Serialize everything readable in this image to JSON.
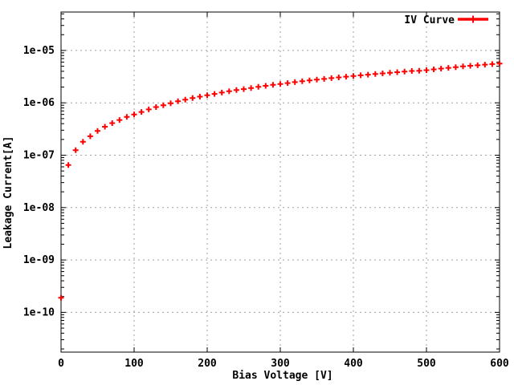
{
  "window": {
    "background": "#ffffff"
  },
  "chart_data": {
    "type": "scatter",
    "title": "",
    "xlabel": "Bias Voltage [V]",
    "ylabel": "Leakage Current[A]",
    "x_scale": "linear",
    "y_scale": "log",
    "xlim": [
      0,
      600
    ],
    "ylim": [
      1.8e-11,
      5.3e-05
    ],
    "x_ticks": [
      0,
      100,
      200,
      300,
      400,
      500,
      600
    ],
    "y_ticks": [
      1e-10,
      1e-09,
      1e-08,
      1e-07,
      1e-06,
      1e-05
    ],
    "y_tick_labels": [
      "1e-10",
      "1e-09",
      "1e-08",
      "1e-07",
      "1e-06",
      "1e-05"
    ],
    "grid": true,
    "legend": {
      "position": "top-right",
      "label": "IV Curve"
    },
    "colors": {
      "series": "#ff0000",
      "grid": "#a0a0a0",
      "border": "#000000",
      "text": "#000000"
    },
    "series": [
      {
        "name": "IV Curve",
        "marker": "plus",
        "color": "#ff0000",
        "x": [
          0,
          10,
          20,
          30,
          40,
          50,
          60,
          70,
          80,
          90,
          100,
          110,
          120,
          130,
          140,
          150,
          160,
          170,
          180,
          190,
          200,
          210,
          220,
          230,
          240,
          250,
          260,
          270,
          280,
          290,
          300,
          310,
          320,
          330,
          340,
          350,
          360,
          370,
          380,
          390,
          400,
          410,
          420,
          430,
          440,
          450,
          460,
          470,
          480,
          490,
          500,
          510,
          520,
          530,
          540,
          550,
          560,
          570,
          580,
          590,
          600
        ],
        "y": [
          1.9e-10,
          6.5e-08,
          1.25e-07,
          1.8e-07,
          2.3e-07,
          2.9e-07,
          3.5e-07,
          4.1e-07,
          4.7e-07,
          5.4e-07,
          6e-07,
          6.7e-07,
          7.5e-07,
          8.3e-07,
          9e-07,
          9.8e-07,
          1.07e-06,
          1.15e-06,
          1.23e-06,
          1.31e-06,
          1.4e-06,
          1.48e-06,
          1.57e-06,
          1.66e-06,
          1.75e-06,
          1.83e-06,
          1.92e-06,
          2.02e-06,
          2.11e-06,
          2.2e-06,
          2.29e-06,
          2.38e-06,
          2.48e-06,
          2.58e-06,
          2.67e-06,
          2.77e-06,
          2.86e-06,
          2.96e-06,
          3.06e-06,
          3.16e-06,
          3.26e-06,
          3.35e-06,
          3.45e-06,
          3.55e-06,
          3.65e-06,
          3.75e-06,
          3.85e-06,
          3.95e-06,
          4.05e-06,
          4.1e-06,
          4.2e-06,
          4.35e-06,
          4.5e-06,
          4.65e-06,
          4.8e-06,
          4.95e-06,
          5.1e-06,
          5.2e-06,
          5.35e-06,
          5.5e-06,
          5.6e-06
        ]
      }
    ]
  }
}
